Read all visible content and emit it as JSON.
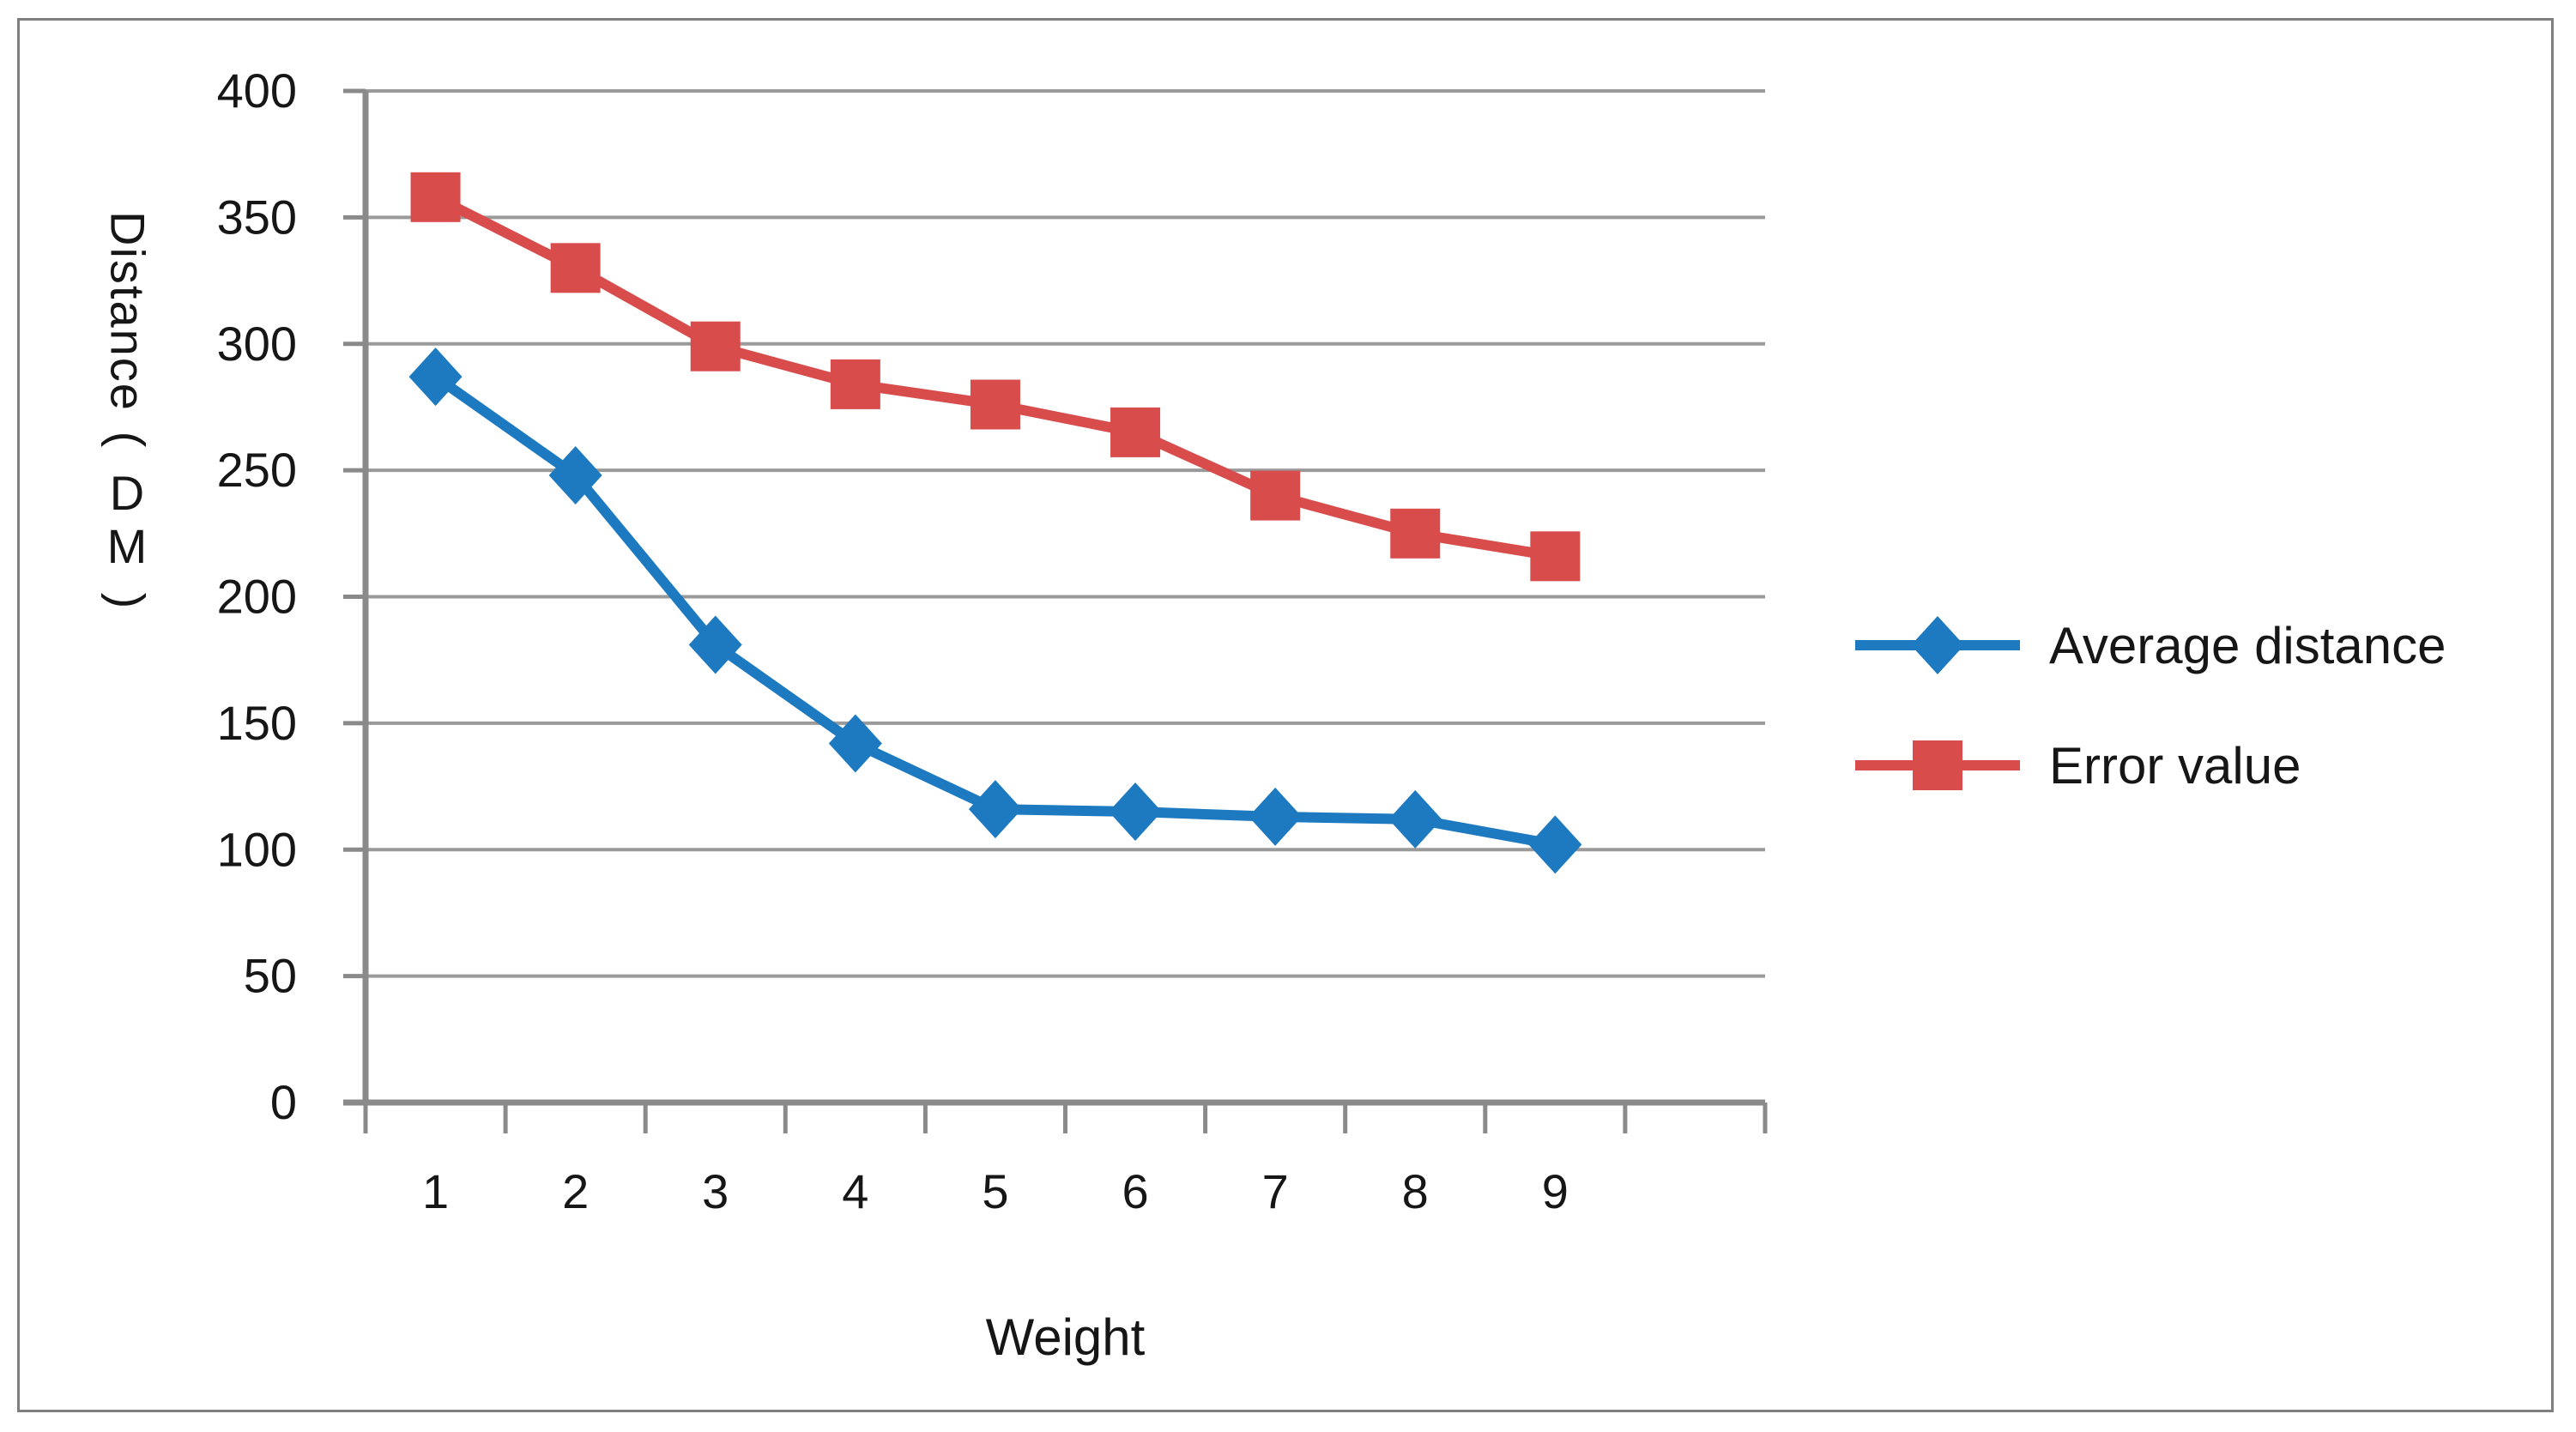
{
  "figure": {
    "background": "#ffffff",
    "border_color": "#7f7f7f"
  },
  "chart_data": {
    "type": "line",
    "title": "",
    "xlabel": "Weight",
    "ylabel": "Distance（DM）",
    "ylabel_vertical_parts": [
      "Distance",
      "(",
      "D",
      "M",
      ")"
    ],
    "categories": [
      "1",
      "2",
      "3",
      "4",
      "5",
      "6",
      "7",
      "8",
      "9"
    ],
    "x_slots": 10,
    "series": [
      {
        "name": "Average distance",
        "color": "#1e7ac0",
        "marker": "diamond",
        "values": [
          287,
          248,
          181,
          142,
          116,
          115,
          113,
          112,
          102
        ]
      },
      {
        "name": "Error value",
        "color": "#d84c4c",
        "marker": "square",
        "values": [
          358,
          330,
          299,
          284,
          276,
          265,
          240,
          225,
          216
        ]
      }
    ],
    "y_ticks": [
      0,
      50,
      100,
      150,
      200,
      250,
      300,
      350,
      400
    ],
    "ylim": [
      0,
      400
    ],
    "grid": "horizontal",
    "legend_position": "right",
    "gridline_color": "#9a9a9a",
    "axis_color": "#8a8a8a",
    "tick_label_color": "#161616"
  }
}
